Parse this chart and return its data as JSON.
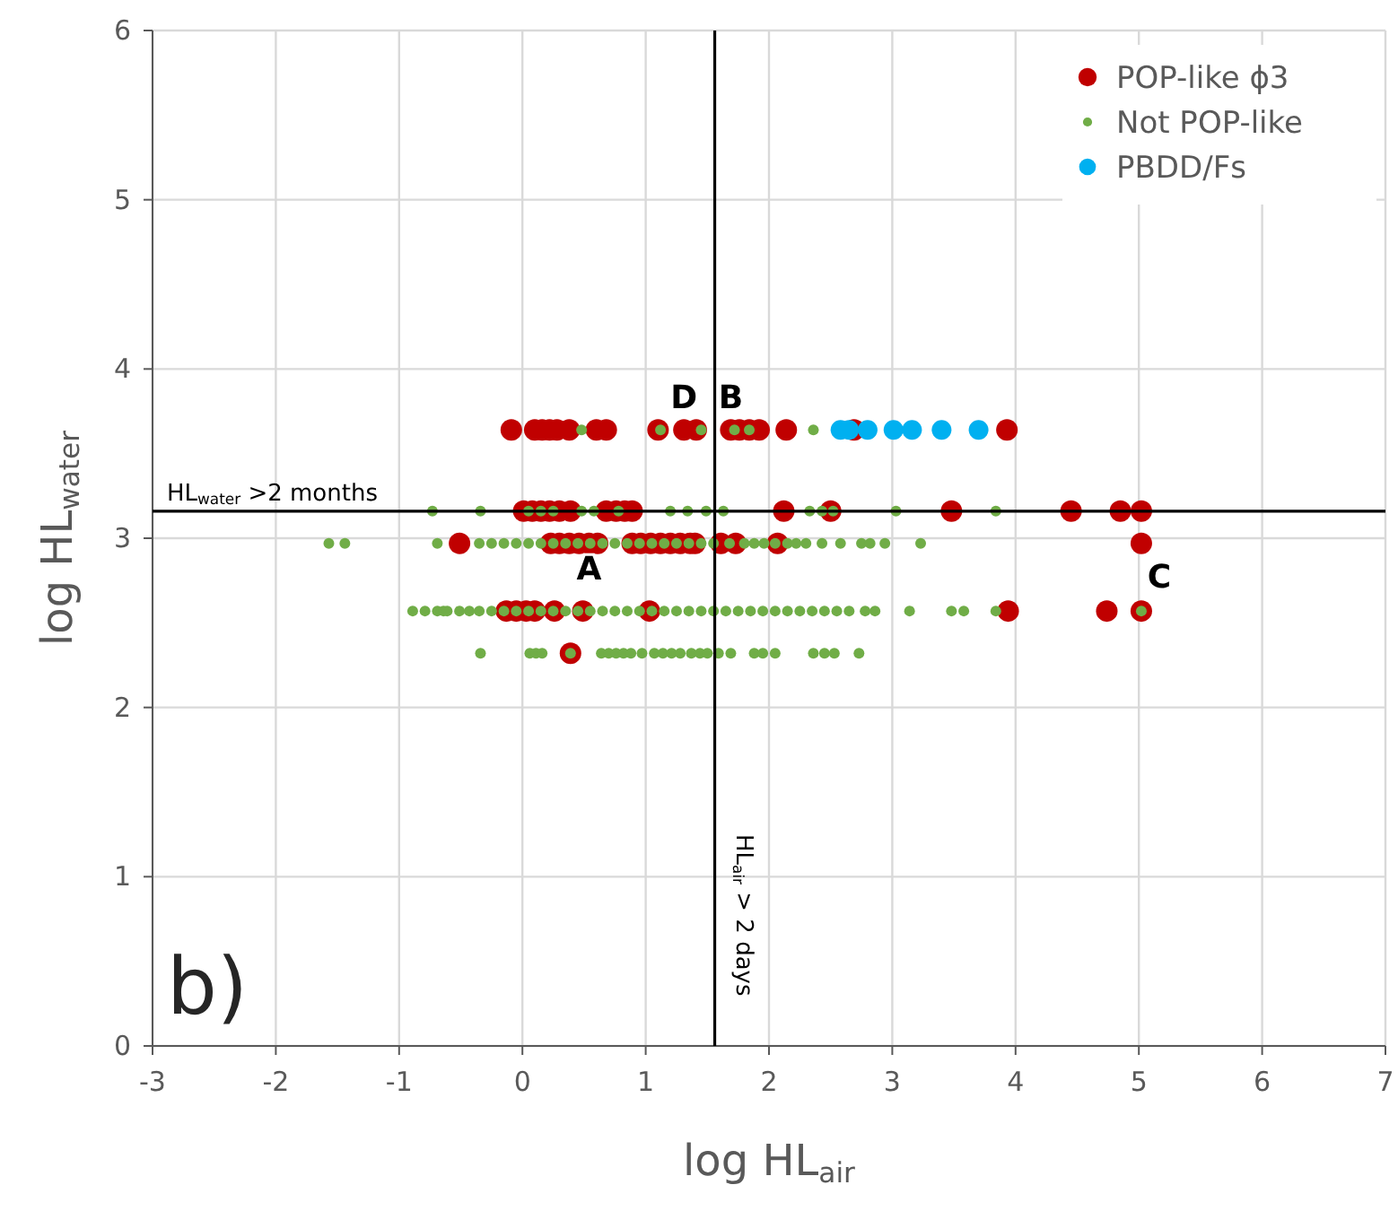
{
  "chart_data": {
    "type": "scatter",
    "xlabel": "log HL$_{air}$",
    "ylabel": "log HL$_{water}$",
    "xlim": [
      -3,
      7
    ],
    "ylim": [
      0,
      6
    ],
    "xticks": [
      -3,
      -2,
      -1,
      0,
      1,
      2,
      3,
      4,
      5,
      6,
      7
    ],
    "yticks": [
      0,
      1,
      2,
      3,
      4,
      5,
      6
    ],
    "grid": true,
    "legend": "top right",
    "marker": "circle",
    "ref_lines": [
      {
        "axis": "y",
        "value": 3.16,
        "label": "HL$_{water}$ >2 months",
        "color": "#000000"
      },
      {
        "axis": "x",
        "value": 1.56,
        "label": "HL$_{air}$ > 2 days",
        "color": "#000000"
      }
    ],
    "annotations": [
      "b)",
      {
        "text": "A",
        "x": 0.54,
        "y": 2.97
      },
      {
        "text": "D",
        "x": 1.31,
        "y": 3.64
      },
      {
        "text": "B",
        "x": 1.69,
        "y": 3.64
      },
      {
        "text": "C",
        "x": 5.02,
        "y": 2.57
      }
    ],
    "series": [
      {
        "name": "POP-like ϕ3",
        "color": "#c00000",
        "x": [
          -0.09,
          0.1,
          0.16,
          0.22,
          0.28,
          0.38,
          0.6,
          0.68,
          1.1,
          1.31,
          1.41,
          1.69,
          1.76,
          1.84,
          1.92,
          2.14,
          2.69,
          3.93,
          0.01,
          0.08,
          0.15,
          0.22,
          0.3,
          0.39,
          0.68,
          0.76,
          0.83,
          0.89,
          2.12,
          2.5,
          3.48,
          4.45,
          4.85,
          5.02,
          -0.51,
          0.23,
          0.3,
          0.38,
          0.46,
          0.54,
          0.61,
          0.89,
          0.96,
          1.04,
          1.12,
          1.2,
          1.28,
          1.36,
          1.4,
          1.61,
          1.73,
          2.07,
          5.02,
          -0.13,
          -0.05,
          0.03,
          0.1,
          0.26,
          0.49,
          1.03,
          3.94,
          4.74,
          5.02,
          0.39
        ],
        "values": [
          3.64,
          3.64,
          3.64,
          3.64,
          3.64,
          3.64,
          3.64,
          3.64,
          3.64,
          3.64,
          3.64,
          3.64,
          3.64,
          3.64,
          3.64,
          3.64,
          3.64,
          3.64,
          3.16,
          3.16,
          3.16,
          3.16,
          3.16,
          3.16,
          3.16,
          3.16,
          3.16,
          3.16,
          3.16,
          3.16,
          3.16,
          3.16,
          3.16,
          3.16,
          2.97,
          2.97,
          2.97,
          2.97,
          2.97,
          2.97,
          2.97,
          2.97,
          2.97,
          2.97,
          2.97,
          2.97,
          2.97,
          2.97,
          2.97,
          2.97,
          2.97,
          2.97,
          2.97,
          2.57,
          2.57,
          2.57,
          2.57,
          2.57,
          2.57,
          2.57,
          2.57,
          2.57,
          2.57,
          2.32
        ]
      },
      {
        "name": "Not POP-like",
        "color": "#70ad47",
        "x": [
          0.48,
          1.12,
          1.45,
          1.72,
          1.84,
          2.36,
          -0.73,
          -0.34,
          0.05,
          0.15,
          0.25,
          0.48,
          0.58,
          0.78,
          1.2,
          1.34,
          1.49,
          1.63,
          2.33,
          2.43,
          2.52,
          3.03,
          3.84,
          -1.57,
          -0.69,
          -0.35,
          -0.25,
          -0.15,
          -0.05,
          0.05,
          0.15,
          0.25,
          0.35,
          0.45,
          0.55,
          0.65,
          0.75,
          0.85,
          0.95,
          1.05,
          1.15,
          1.25,
          1.35,
          1.45,
          1.55,
          1.68,
          1.8,
          1.88,
          1.96,
          2.05,
          2.15,
          2.22,
          2.3,
          2.43,
          2.58,
          2.75,
          2.82,
          2.94,
          3.23,
          -1.44,
          -0.89,
          -0.79,
          -0.69,
          -0.64,
          -0.51,
          -0.43,
          -0.35,
          -0.25,
          -0.15,
          -0.05,
          0.05,
          0.15,
          0.25,
          0.35,
          0.45,
          0.55,
          0.65,
          0.75,
          0.85,
          0.95,
          1.05,
          1.15,
          1.25,
          1.35,
          1.45,
          1.55,
          1.65,
          1.75,
          1.85,
          1.95,
          2.05,
          2.15,
          2.25,
          2.35,
          2.45,
          2.55,
          2.65,
          2.78,
          2.86,
          3.14,
          3.48,
          3.58,
          3.84,
          5.02,
          -0.61,
          -0.34,
          0.06,
          0.11,
          0.16,
          0.39,
          0.64,
          0.7,
          0.76,
          0.82,
          0.88,
          0.97,
          1.07,
          1.14,
          1.21,
          1.28,
          1.37,
          1.44,
          1.5,
          1.59,
          1.69,
          1.88,
          1.95,
          2.05,
          2.36,
          2.45,
          2.53,
          2.73
        ],
        "values": [
          3.64,
          3.64,
          3.64,
          3.64,
          3.64,
          3.64,
          3.16,
          3.16,
          3.16,
          3.16,
          3.16,
          3.16,
          3.16,
          3.16,
          3.16,
          3.16,
          3.16,
          3.16,
          3.16,
          3.16,
          3.16,
          3.16,
          3.16,
          2.97,
          2.97,
          2.97,
          2.97,
          2.97,
          2.97,
          2.97,
          2.97,
          2.97,
          2.97,
          2.97,
          2.97,
          2.97,
          2.97,
          2.97,
          2.97,
          2.97,
          2.97,
          2.97,
          2.97,
          2.97,
          2.97,
          2.97,
          2.97,
          2.97,
          2.97,
          2.97,
          2.97,
          2.97,
          2.97,
          2.97,
          2.97,
          2.97,
          2.97,
          2.97,
          2.97,
          2.97,
          2.57,
          2.57,
          2.57,
          2.57,
          2.57,
          2.57,
          2.57,
          2.57,
          2.57,
          2.57,
          2.57,
          2.57,
          2.57,
          2.57,
          2.57,
          2.57,
          2.57,
          2.57,
          2.57,
          2.57,
          2.57,
          2.57,
          2.57,
          2.57,
          2.57,
          2.57,
          2.57,
          2.57,
          2.57,
          2.57,
          2.57,
          2.57,
          2.57,
          2.57,
          2.57,
          2.57,
          2.57,
          2.57,
          2.57,
          2.57,
          2.57,
          2.57,
          2.57,
          2.57,
          2.57,
          2.32,
          2.32,
          2.32,
          2.32,
          2.32,
          2.32,
          2.32,
          2.32,
          2.32,
          2.32,
          2.32,
          2.32,
          2.32,
          2.32,
          2.32,
          2.32,
          2.32,
          2.32,
          2.32,
          2.32,
          2.32,
          2.32,
          2.32,
          2.32,
          2.32,
          2.32,
          2.32
        ]
      },
      {
        "name": "PBDD/Fs",
        "color": "#00b0f0",
        "x": [
          2.58,
          2.65,
          2.8,
          3.01,
          3.16,
          3.4,
          3.7
        ],
        "values": [
          3.64,
          3.64,
          3.64,
          3.64,
          3.64,
          3.64,
          3.64
        ]
      }
    ]
  }
}
